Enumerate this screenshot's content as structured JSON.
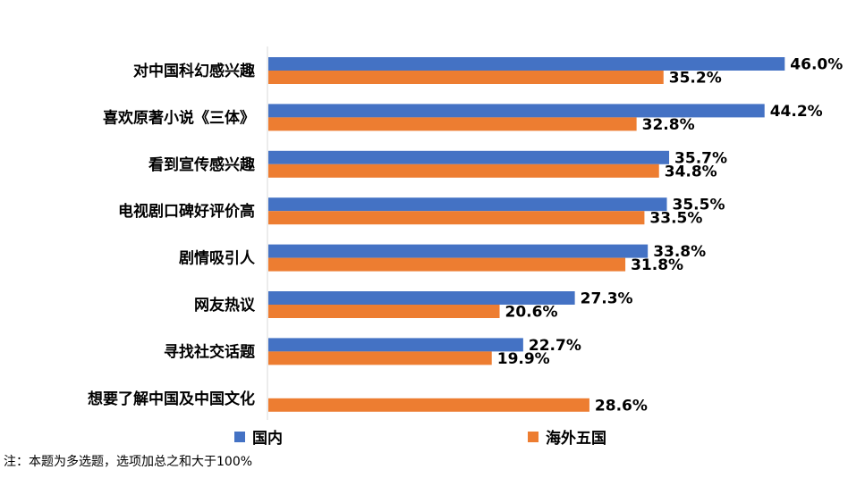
{
  "chart_data": {
    "type": "bar",
    "orientation": "horizontal",
    "categories": [
      "对中国科幻感兴趣",
      "喜欢原著小说《三体》",
      "看到宣传感兴趣",
      "电视剧口碑好评价高",
      "剧情吸引人",
      "网友热议",
      "寻找社交话题",
      "想要了解中国及中国文化"
    ],
    "series": [
      {
        "name": "国内",
        "color": "#4472C4",
        "values": [
          46.0,
          44.2,
          35.7,
          35.5,
          33.8,
          27.3,
          22.7,
          null
        ],
        "labels": [
          "46.0%",
          "44.2%",
          "35.7%",
          "35.5%",
          "33.8%",
          "27.3%",
          "22.7%",
          ""
        ]
      },
      {
        "name": "海外五国",
        "color": "#ED7D31",
        "values": [
          35.2,
          32.8,
          34.8,
          33.5,
          31.8,
          20.6,
          19.9,
          28.6
        ],
        "labels": [
          "35.2%",
          "32.8%",
          "34.8%",
          "33.5%",
          "31.8%",
          "20.6%",
          "19.9%",
          "28.6%"
        ]
      }
    ],
    "legend_position": "bottom",
    "grid": false
  },
  "note": "注：本题为多选题，选项加总之和大于100%"
}
